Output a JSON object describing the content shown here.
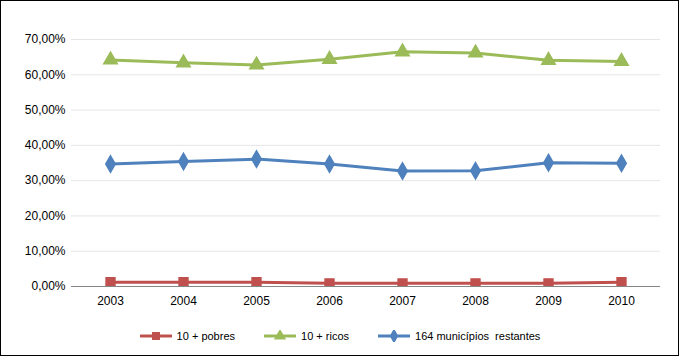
{
  "chart_data": {
    "type": "line",
    "categories": [
      "2003",
      "2004",
      "2005",
      "2006",
      "2007",
      "2008",
      "2009",
      "2010"
    ],
    "series": [
      {
        "name": "10 + pobres",
        "color": "#C0504D",
        "marker": "square",
        "values": [
          1.2,
          1.2,
          1.2,
          0.9,
          0.9,
          0.9,
          0.9,
          1.2
        ]
      },
      {
        "name": "10 + ricos",
        "color": "#9BBB59",
        "marker": "triangle",
        "values": [
          64.2,
          63.4,
          62.8,
          64.4,
          66.5,
          66.2,
          64.1,
          63.8
        ]
      },
      {
        "name": "164 municípios  restantes",
        "color": "#4F81BD",
        "marker": "diamond",
        "values": [
          34.7,
          35.4,
          36.1,
          34.7,
          32.7,
          32.8,
          35.1,
          34.9
        ]
      }
    ],
    "ylim": [
      0,
      70
    ],
    "yticks": [
      {
        "value": 0,
        "label": "0,00%"
      },
      {
        "value": 10,
        "label": "10,00%"
      },
      {
        "value": 20,
        "label": "20,00%"
      },
      {
        "value": 30,
        "label": "30,00%"
      },
      {
        "value": 40,
        "label": "40,00%"
      },
      {
        "value": 50,
        "label": "50,00%"
      },
      {
        "value": 60,
        "label": "60,00%"
      },
      {
        "value": 70,
        "label": "70,00%"
      }
    ],
    "grid": true,
    "legend": "bottom"
  }
}
